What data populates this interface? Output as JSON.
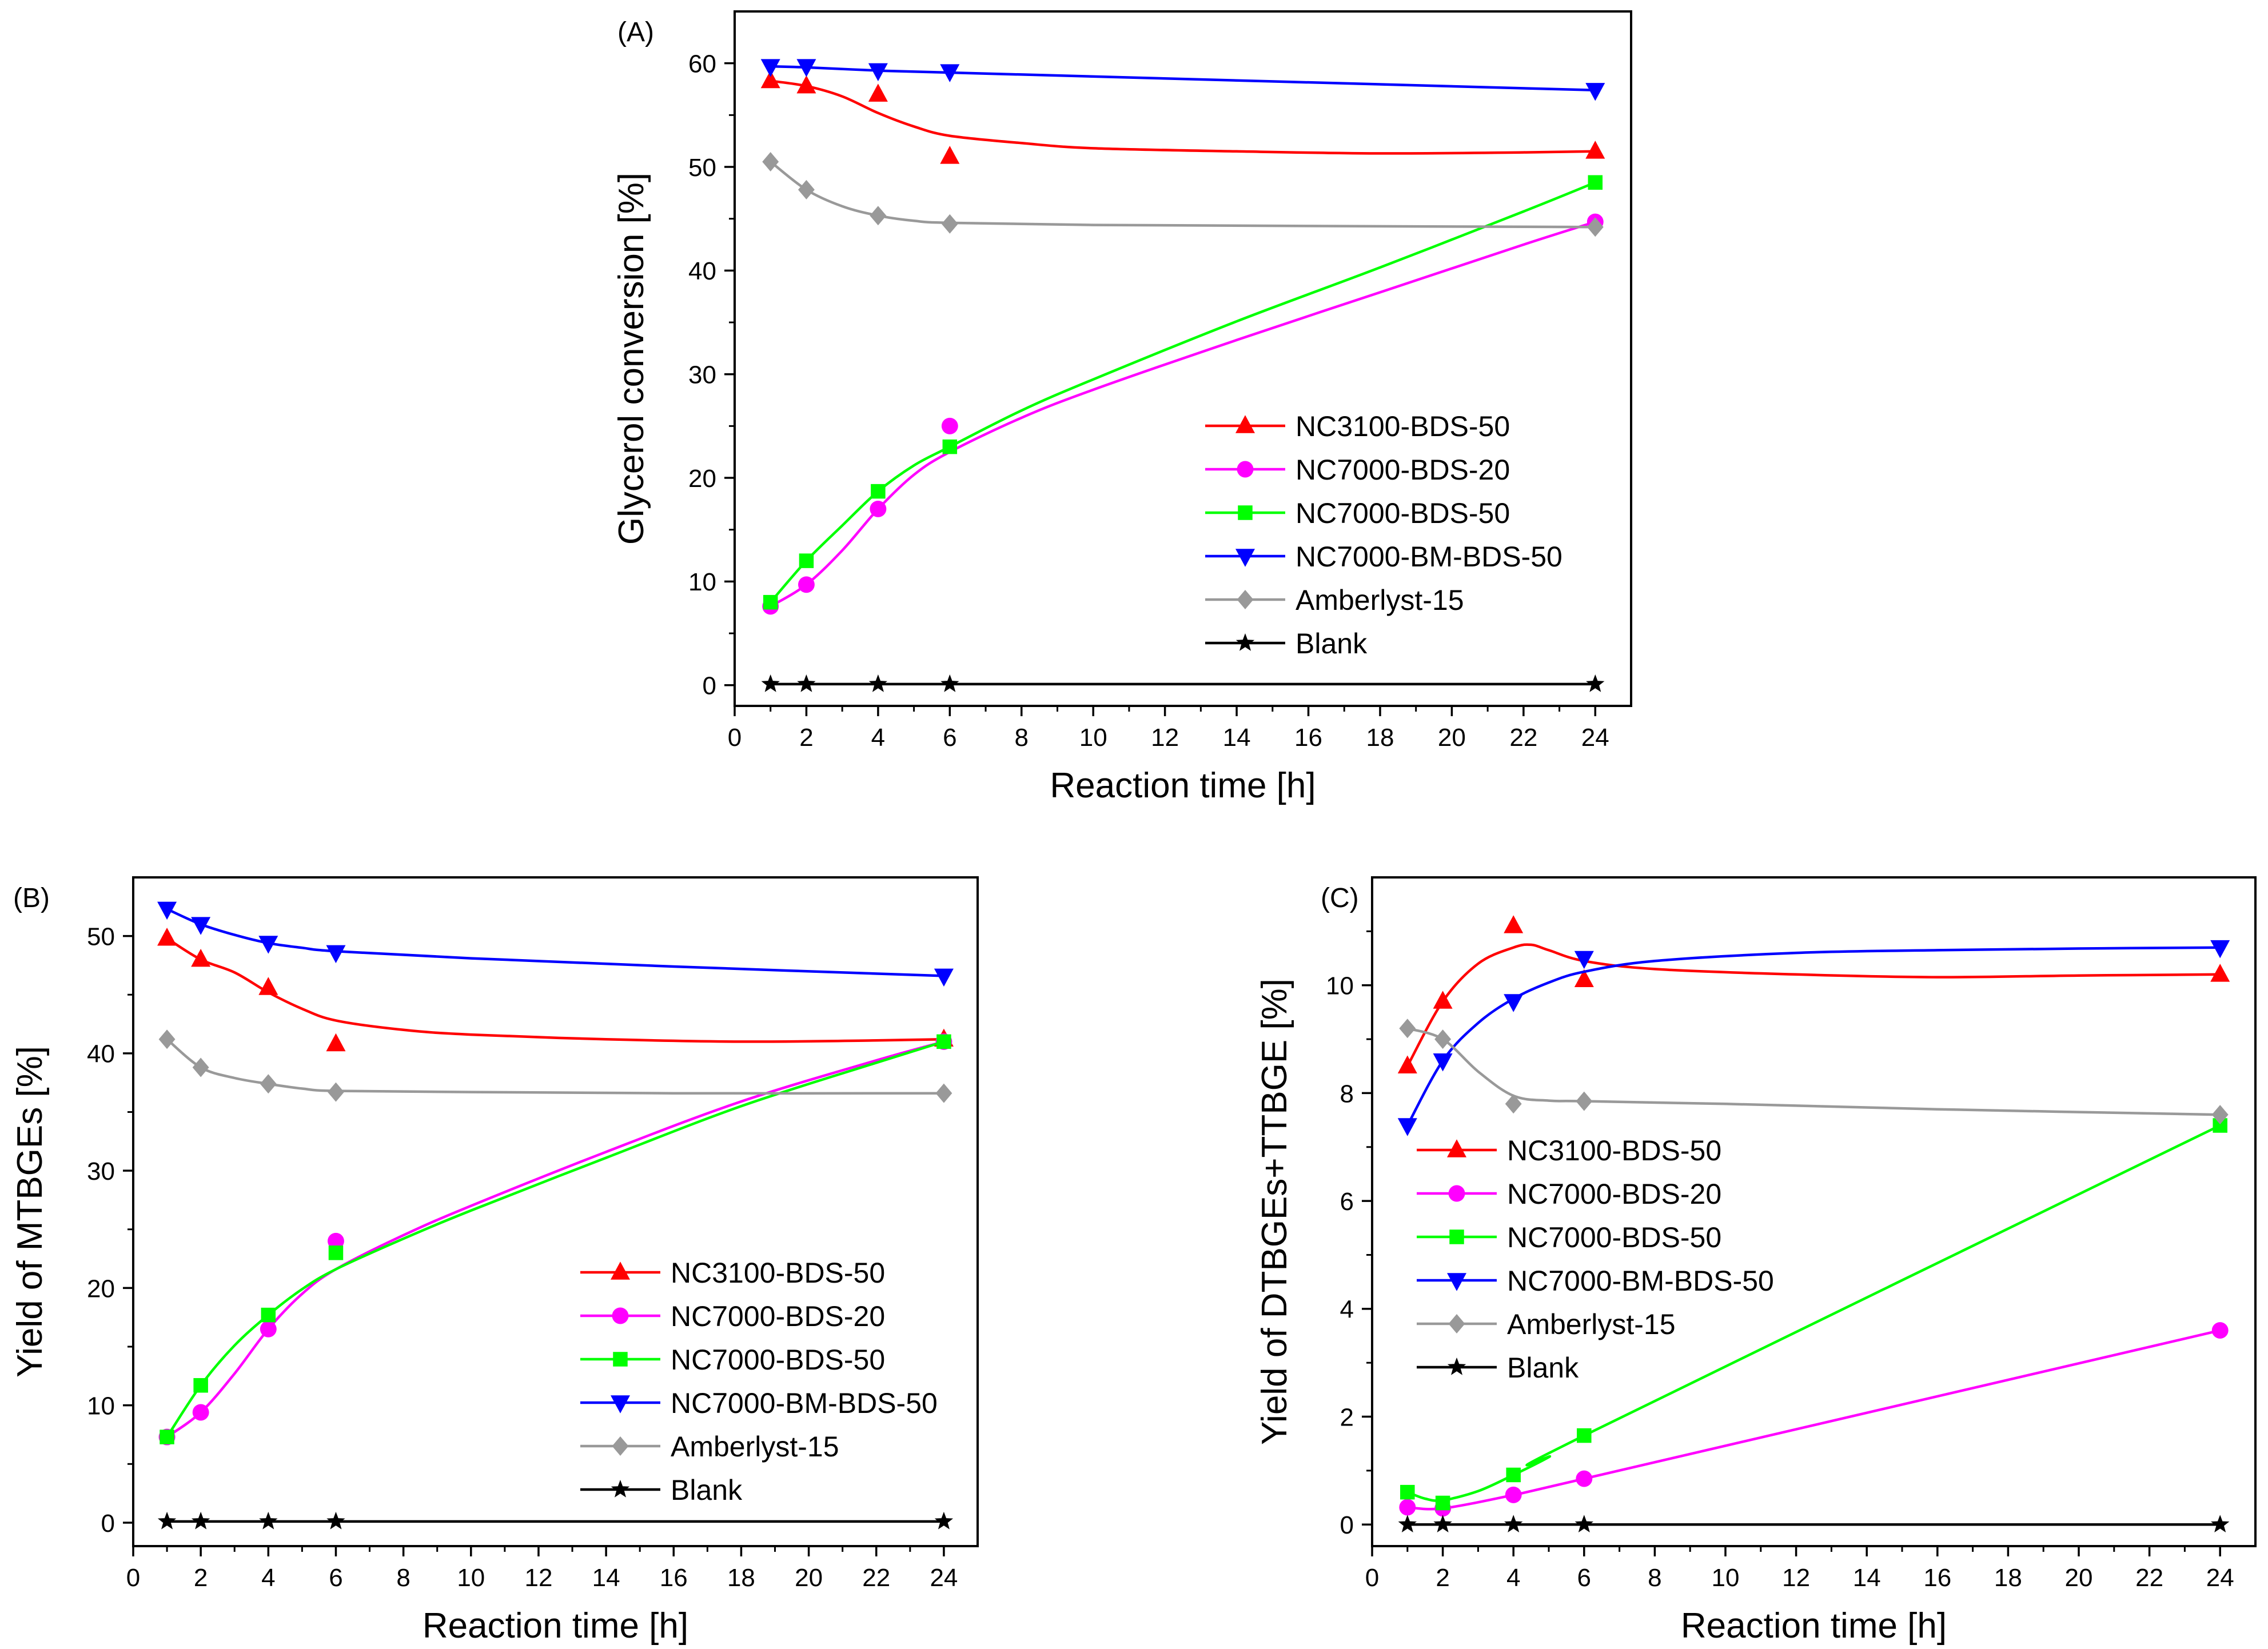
{
  "chart_data": [
    {
      "panel": "(A)",
      "type": "line",
      "title": "",
      "xlabel": "Reaction time [h]",
      "ylabel": "Glycerol conversion [%]",
      "xlim": [
        0,
        25
      ],
      "ylim": [
        -2,
        65
      ],
      "xticks": [
        0,
        2,
        4,
        6,
        8,
        10,
        12,
        14,
        16,
        18,
        20,
        22,
        24
      ],
      "yticks": [
        0,
        10,
        20,
        30,
        40,
        50,
        60
      ],
      "legend_position": "bottom-right",
      "series": [
        {
          "name": "NC3100-BDS-50",
          "color": "#ff0000",
          "marker": "triangle-up",
          "x": [
            1,
            2,
            4,
            6,
            24
          ],
          "values": [
            58.3,
            57.8,
            57.0,
            51.0,
            51.5
          ],
          "fit_x": [
            1,
            2,
            3,
            4,
            5,
            6,
            8,
            10,
            14,
            18,
            22,
            24
          ],
          "fit_y": [
            58.3,
            57.8,
            56.8,
            55.2,
            53.9,
            53.0,
            52.3,
            51.8,
            51.5,
            51.3,
            51.4,
            51.5
          ]
        },
        {
          "name": "NC7000-BDS-20",
          "color": "#ff00ff",
          "marker": "circle",
          "x": [
            1,
            2,
            4,
            6,
            24
          ],
          "values": [
            7.6,
            9.7,
            17.0,
            25.0,
            44.7
          ],
          "fit_x": [
            1,
            2,
            3,
            4,
            5,
            6,
            8,
            10,
            14,
            18,
            22,
            24
          ],
          "fit_y": [
            7.6,
            9.7,
            13.0,
            17.0,
            20.3,
            22.5,
            25.8,
            28.5,
            33.3,
            37.9,
            42.5,
            44.7
          ]
        },
        {
          "name": "NC7000-BDS-50",
          "color": "#00ff00",
          "marker": "square",
          "x": [
            1,
            2,
            4,
            6,
            24
          ],
          "values": [
            8.0,
            12.0,
            18.7,
            23.0,
            48.5
          ],
          "fit_x": [
            1,
            2,
            3,
            4,
            5,
            6,
            8,
            10,
            14,
            18,
            22,
            24
          ],
          "fit_y": [
            8.0,
            12.0,
            15.4,
            18.7,
            21.2,
            23.0,
            26.5,
            29.5,
            35.1,
            40.3,
            45.7,
            48.5
          ]
        },
        {
          "name": "NC7000-BM-BDS-50",
          "color": "#0000ff",
          "marker": "triangle-down",
          "x": [
            1,
            2,
            4,
            6,
            24
          ],
          "values": [
            59.7,
            59.7,
            59.3,
            59.2,
            57.4
          ],
          "fit_x": [
            1,
            2,
            4,
            6,
            24
          ],
          "fit_y": [
            59.7,
            59.6,
            59.3,
            59.1,
            57.4
          ]
        },
        {
          "name": "Amberlyst-15",
          "color": "#999999",
          "marker": "diamond",
          "x": [
            1,
            2,
            4,
            6,
            24
          ],
          "values": [
            50.5,
            47.8,
            45.3,
            44.5,
            44.2
          ],
          "fit_x": [
            1,
            2,
            3,
            4,
            5,
            6,
            10,
            16,
            24
          ],
          "fit_y": [
            50.5,
            47.8,
            46.2,
            45.3,
            44.8,
            44.6,
            44.4,
            44.3,
            44.2
          ]
        },
        {
          "name": "Blank",
          "color": "#000000",
          "marker": "star",
          "x": [
            1,
            2,
            4,
            6,
            24
          ],
          "values": [
            0.1,
            0.1,
            0.1,
            0.1,
            0.1
          ],
          "fit_x": [
            1,
            24
          ],
          "fit_y": [
            0.1,
            0.1
          ]
        }
      ]
    },
    {
      "panel": "(B)",
      "type": "line",
      "title": "",
      "xlabel": "Reaction time [h]",
      "ylabel": "Yield of MTBGEs [%]",
      "xlim": [
        0,
        25
      ],
      "ylim": [
        -2,
        55
      ],
      "xticks": [
        0,
        2,
        4,
        6,
        8,
        10,
        12,
        14,
        16,
        18,
        20,
        22,
        24
      ],
      "yticks": [
        0,
        10,
        20,
        30,
        40,
        50
      ],
      "legend_position": "bottom-right",
      "series": [
        {
          "name": "NC3100-BDS-50",
          "color": "#ff0000",
          "marker": "triangle-up",
          "x": [
            1,
            2,
            4,
            6,
            24
          ],
          "values": [
            49.8,
            48.0,
            45.6,
            40.8,
            41.2
          ],
          "fit_x": [
            1,
            2,
            3,
            4,
            5,
            6,
            8,
            10,
            14,
            18,
            22,
            24
          ],
          "fit_y": [
            49.8,
            48.0,
            46.9,
            45.2,
            43.8,
            42.8,
            42.0,
            41.6,
            41.2,
            41.0,
            41.1,
            41.2
          ]
        },
        {
          "name": "NC7000-BDS-20",
          "color": "#ff00ff",
          "marker": "circle",
          "x": [
            1,
            2,
            4,
            6,
            24
          ],
          "values": [
            7.3,
            9.4,
            16.5,
            24.0,
            41.0
          ],
          "fit_x": [
            1,
            2,
            3,
            4,
            5,
            6,
            8,
            10,
            14,
            18,
            22,
            24
          ],
          "fit_y": [
            7.3,
            9.4,
            12.7,
            16.5,
            19.5,
            21.6,
            24.5,
            27.0,
            31.6,
            35.9,
            39.4,
            41.0
          ]
        },
        {
          "name": "NC7000-BDS-50",
          "color": "#00ff00",
          "marker": "square",
          "x": [
            1,
            2,
            4,
            6,
            24
          ],
          "values": [
            7.3,
            11.7,
            17.7,
            23.0,
            41.0
          ],
          "fit_x": [
            1,
            2,
            3,
            4,
            5,
            6,
            8,
            10,
            14,
            18,
            22,
            24
          ],
          "fit_y": [
            7.3,
            11.7,
            15.1,
            17.7,
            19.9,
            21.6,
            24.2,
            26.6,
            31.1,
            35.5,
            39.2,
            41.0
          ]
        },
        {
          "name": "NC7000-BM-BDS-50",
          "color": "#0000ff",
          "marker": "triangle-down",
          "x": [
            1,
            2,
            4,
            6,
            24
          ],
          "values": [
            52.3,
            51.0,
            49.4,
            48.6,
            46.6
          ],
          "fit_x": [
            1,
            2,
            3,
            4,
            5,
            6,
            10,
            16,
            24
          ],
          "fit_y": [
            52.3,
            51.0,
            50.1,
            49.4,
            49.0,
            48.7,
            48.1,
            47.4,
            46.6
          ]
        },
        {
          "name": "Amberlyst-15",
          "color": "#999999",
          "marker": "diamond",
          "x": [
            1,
            2,
            4,
            6,
            24
          ],
          "values": [
            41.2,
            38.8,
            37.4,
            36.7,
            36.6
          ],
          "fit_x": [
            1,
            2,
            3,
            4,
            5,
            6,
            10,
            16,
            24
          ],
          "fit_y": [
            41.2,
            38.8,
            37.9,
            37.4,
            37.0,
            36.8,
            36.7,
            36.6,
            36.6
          ]
        },
        {
          "name": "Blank",
          "color": "#000000",
          "marker": "star",
          "x": [
            1,
            2,
            4,
            6,
            24
          ],
          "values": [
            0.1,
            0.1,
            0.1,
            0.1,
            0.1
          ],
          "fit_x": [
            1,
            24
          ],
          "fit_y": [
            0.1,
            0.1
          ]
        }
      ]
    },
    {
      "panel": "(C)",
      "type": "line",
      "title": "",
      "xlabel": "Reaction time [h]",
      "ylabel": "Yield of DTBGEs+TTBGE [%]",
      "xlim": [
        0,
        25
      ],
      "ylim": [
        -0.4,
        12
      ],
      "xticks": [
        0,
        2,
        4,
        6,
        8,
        10,
        12,
        14,
        16,
        18,
        20,
        22,
        24
      ],
      "yticks": [
        0,
        2,
        4,
        6,
        8,
        10
      ],
      "legend_position": "middle-left",
      "series": [
        {
          "name": "NC3100-BDS-50",
          "color": "#ff0000",
          "marker": "triangle-up",
          "x": [
            1,
            2,
            4,
            6,
            24
          ],
          "values": [
            8.5,
            9.7,
            11.1,
            10.1,
            10.2
          ],
          "fit_x": [
            1,
            2,
            3,
            4,
            4.5,
            5,
            6,
            8,
            12,
            16,
            20,
            24
          ],
          "fit_y": [
            8.5,
            9.7,
            10.4,
            10.7,
            10.75,
            10.65,
            10.45,
            10.3,
            10.2,
            10.15,
            10.18,
            10.2
          ]
        },
        {
          "name": "NC7000-BDS-20",
          "color": "#ff00ff",
          "marker": "circle",
          "x": [
            1,
            2,
            4,
            6,
            24
          ],
          "values": [
            0.32,
            0.3,
            0.55,
            0.85,
            3.6
          ],
          "fit_x": [
            1,
            2,
            4,
            6,
            24
          ],
          "fit_y": [
            0.32,
            0.3,
            0.55,
            0.85,
            3.6
          ]
        },
        {
          "name": "NC7000-BDS-50",
          "color": "#00ff00",
          "marker": "square",
          "x": [
            1,
            2,
            4,
            6,
            24
          ],
          "values": [
            0.6,
            0.4,
            0.92,
            1.65,
            7.4
          ],
          "fit_x": [
            1,
            1.5,
            2,
            3,
            4,
            5,
            6,
            24
          ],
          "fit_y": [
            0.6,
            0.48,
            0.45,
            0.62,
            0.92,
            1.25,
            1.65,
            7.4
          ]
        },
        {
          "name": "NC7000-BM-BDS-50",
          "color": "#0000ff",
          "marker": "triangle-down",
          "x": [
            1,
            2,
            4,
            6,
            24
          ],
          "values": [
            7.4,
            8.6,
            9.7,
            10.5,
            10.7
          ],
          "fit_x": [
            1,
            2,
            3,
            4,
            5,
            6,
            8,
            12,
            16,
            20,
            24
          ],
          "fit_y": [
            7.4,
            8.6,
            9.3,
            9.75,
            10.05,
            10.25,
            10.45,
            10.6,
            10.65,
            10.68,
            10.7
          ]
        },
        {
          "name": "Amberlyst-15",
          "color": "#999999",
          "marker": "diamond",
          "x": [
            1,
            2,
            4,
            6,
            24
          ],
          "values": [
            9.2,
            9.0,
            7.8,
            7.85,
            7.6
          ],
          "fit_x": [
            1,
            2,
            3,
            4,
            5,
            6,
            10,
            16,
            24
          ],
          "fit_y": [
            9.2,
            9.0,
            8.4,
            7.95,
            7.86,
            7.85,
            7.8,
            7.7,
            7.6
          ]
        },
        {
          "name": "Blank",
          "color": "#000000",
          "marker": "star",
          "x": [
            1,
            2,
            4,
            6,
            24
          ],
          "values": [
            0.0,
            0.0,
            0.0,
            0.0,
            0.0
          ],
          "fit_x": [
            1,
            24
          ],
          "fit_y": [
            0.0,
            0.0
          ]
        }
      ]
    }
  ]
}
